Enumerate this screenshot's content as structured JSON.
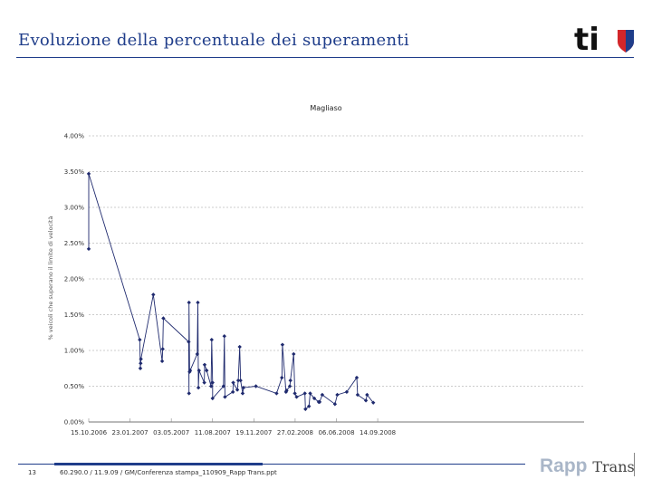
{
  "slide": {
    "title": "Evoluzione della percentuale dei superamenti",
    "page_number": "13",
    "footer": "60.290.0 / 11.9.09 / GM/Conferenza stampa_110909_Rapp Trans.ppt",
    "logo_text": "ti",
    "company_name_1": "Rapp",
    "company_name_2": "Trans",
    "colors": {
      "title": "#1f3d8a",
      "series": "#1f2a6e",
      "grid": "#9a9a9a",
      "shield_red": "#d3262a",
      "shield_blue": "#1f3d8a"
    }
  },
  "chart_data": {
    "type": "line",
    "title": "Magliaso",
    "ylabel": "% veicoli che superano il limite di velocità",
    "xlabel": "",
    "ylim": [
      0,
      4
    ],
    "xlim": [
      0,
      168
    ],
    "y_ticks": [
      {
        "value": 0,
        "label": "0.00%"
      },
      {
        "value": 0.5,
        "label": "0.50%"
      },
      {
        "value": 1,
        "label": "1.00%"
      },
      {
        "value": 1.5,
        "label": "1.50%"
      },
      {
        "value": 2,
        "label": "2.00%"
      },
      {
        "value": 2.5,
        "label": "2.50%"
      },
      {
        "value": 3,
        "label": "3.00%"
      },
      {
        "value": 3.5,
        "label": "3.50%"
      },
      {
        "value": 4,
        "label": "4.00%"
      }
    ],
    "x_ticks": [
      {
        "value": 0,
        "label": "15.10.2006"
      },
      {
        "value": 14,
        "label": "23.01.2007"
      },
      {
        "value": 28,
        "label": "03.05.2007"
      },
      {
        "value": 42,
        "label": "11.08.2007"
      },
      {
        "value": 56,
        "label": "19.11.2007"
      },
      {
        "value": 70,
        "label": "27.02.2008"
      },
      {
        "value": 84,
        "label": "06.06.2008"
      },
      {
        "value": 98,
        "label": "14.09.2008"
      }
    ],
    "grid": true,
    "series": [
      {
        "name": "Magliaso",
        "points": [
          {
            "x": 0.0,
            "y": 2.42
          },
          {
            "x": 0.0,
            "y": 3.47
          },
          {
            "x": 17.3,
            "y": 1.15
          },
          {
            "x": 17.5,
            "y": 0.75
          },
          {
            "x": 17.6,
            "y": 0.82
          },
          {
            "x": 17.7,
            "y": 0.88
          },
          {
            "x": 21.9,
            "y": 1.78
          },
          {
            "x": 24.9,
            "y": 0.85
          },
          {
            "x": 25.1,
            "y": 1.02
          },
          {
            "x": 25.3,
            "y": 1.45
          },
          {
            "x": 33.9,
            "y": 1.12
          },
          {
            "x": 34.0,
            "y": 0.4
          },
          {
            "x": 34.0,
            "y": 1.67
          },
          {
            "x": 34.2,
            "y": 0.7
          },
          {
            "x": 34.4,
            "y": 0.72
          },
          {
            "x": 36.8,
            "y": 0.95
          },
          {
            "x": 37.0,
            "y": 1.67
          },
          {
            "x": 37.2,
            "y": 0.48
          },
          {
            "x": 37.4,
            "y": 0.72
          },
          {
            "x": 39.2,
            "y": 0.55
          },
          {
            "x": 39.3,
            "y": 0.8
          },
          {
            "x": 40.0,
            "y": 0.72
          },
          {
            "x": 41.5,
            "y": 0.5
          },
          {
            "x": 41.7,
            "y": 1.15
          },
          {
            "x": 42.0,
            "y": 0.55
          },
          {
            "x": 42.0,
            "y": 0.33
          },
          {
            "x": 45.7,
            "y": 0.5
          },
          {
            "x": 46.0,
            "y": 1.2
          },
          {
            "x": 46.2,
            "y": 0.35
          },
          {
            "x": 48.9,
            "y": 0.42
          },
          {
            "x": 49.0,
            "y": 0.55
          },
          {
            "x": 50.4,
            "y": 0.45
          },
          {
            "x": 50.7,
            "y": 0.58
          },
          {
            "x": 51.2,
            "y": 1.05
          },
          {
            "x": 51.5,
            "y": 0.58
          },
          {
            "x": 52.2,
            "y": 0.4
          },
          {
            "x": 52.5,
            "y": 0.48
          },
          {
            "x": 56.7,
            "y": 0.5
          },
          {
            "x": 63.7,
            "y": 0.4
          },
          {
            "x": 65.5,
            "y": 0.62
          },
          {
            "x": 65.7,
            "y": 1.08
          },
          {
            "x": 66.9,
            "y": 0.42
          },
          {
            "x": 67.1,
            "y": 0.44
          },
          {
            "x": 68.2,
            "y": 0.5
          },
          {
            "x": 68.4,
            "y": 0.58
          },
          {
            "x": 69.5,
            "y": 0.95
          },
          {
            "x": 69.9,
            "y": 0.4
          },
          {
            "x": 70.5,
            "y": 0.35
          },
          {
            "x": 73.3,
            "y": 0.4
          },
          {
            "x": 73.5,
            "y": 0.18
          },
          {
            "x": 74.7,
            "y": 0.22
          },
          {
            "x": 75.1,
            "y": 0.4
          },
          {
            "x": 76.5,
            "y": 0.33
          },
          {
            "x": 78.0,
            "y": 0.28
          },
          {
            "x": 78.3,
            "y": 0.28
          },
          {
            "x": 79.2,
            "y": 0.38
          },
          {
            "x": 83.5,
            "y": 0.25
          },
          {
            "x": 84.3,
            "y": 0.38
          },
          {
            "x": 87.5,
            "y": 0.42
          },
          {
            "x": 90.9,
            "y": 0.62
          },
          {
            "x": 91.2,
            "y": 0.38
          },
          {
            "x": 94.0,
            "y": 0.3
          },
          {
            "x": 94.4,
            "y": 0.38
          },
          {
            "x": 96.5,
            "y": 0.27
          }
        ]
      }
    ]
  }
}
